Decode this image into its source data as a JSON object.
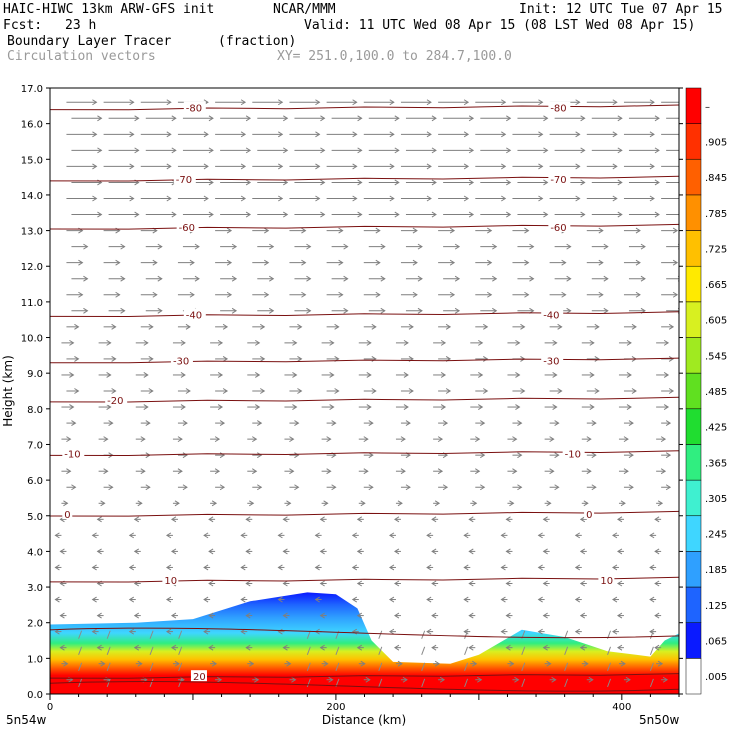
{
  "header": {
    "model": "HAIC-HIWC 13km ARW-GFS init",
    "org": "NCAR/MMM",
    "init": "Init: 12 UTC Tue 07 Apr 15",
    "fcst_label": "Fcst:",
    "fcst_value": "23 h",
    "valid": "Valid: 11 UTC Wed 08 Apr 15 (08 LST Wed 08 Apr 15)",
    "field": "Boundary Layer Tracer",
    "units": "(fraction)",
    "overlay": "Circulation vectors",
    "xy": "XY= 251.0,100.0 to 284.7,100.0"
  },
  "axes": {
    "xlabel": "Distance (km)",
    "ylabel": "Height (km)",
    "left_corner": "5n54w",
    "right_corner": "5n50w"
  },
  "colorbar": {
    "labels": [
      ".005",
      ".065",
      ".125",
      ".185",
      ".245",
      ".305",
      ".365",
      ".425",
      ".485",
      ".545",
      ".605",
      ".665",
      ".725",
      ".785",
      ".845",
      ".905",
      "–"
    ],
    "colors": [
      "#ffffff",
      "#0a1aff",
      "#1e64ff",
      "#2fa0ff",
      "#3fd6ff",
      "#3ff0d0",
      "#30ee80",
      "#20dd30",
      "#60e020",
      "#a0ea20",
      "#d8f020",
      "#ffea00",
      "#ffc000",
      "#ff9000",
      "#ff6000",
      "#ff3000",
      "#ff0000"
    ]
  },
  "chart_data": {
    "type": "heatmap",
    "title": "Boundary Layer Tracer",
    "xlabel": "Distance (km)",
    "ylabel": "Height (km)",
    "xlim": [
      0,
      440
    ],
    "ylim": [
      0,
      17
    ],
    "x_ticks": [
      0,
      200,
      400
    ],
    "y_ticks": [
      0.0,
      1.0,
      2.0,
      3.0,
      4.0,
      5.0,
      6.0,
      7.0,
      8.0,
      9.0,
      10.0,
      11.0,
      12.0,
      13.0,
      14.0,
      15.0,
      16.0,
      17.0
    ],
    "y_tick_labels": [
      "0.0",
      "1.0",
      "2.0",
      "3.0",
      "4.0",
      "5.0",
      "6.0",
      "7.0",
      "8.0",
      "9.0",
      "10.0",
      "11.0",
      "12.0",
      "13.0",
      "14.0",
      "15.0",
      "16.0",
      "17.0"
    ],
    "tracer_top_km": [
      [
        0,
        1.95
      ],
      [
        60,
        2.0
      ],
      [
        100,
        2.1
      ],
      [
        140,
        2.6
      ],
      [
        180,
        2.85
      ],
      [
        200,
        2.8
      ],
      [
        215,
        2.4
      ],
      [
        225,
        1.5
      ],
      [
        240,
        0.9
      ],
      [
        280,
        0.85
      ],
      [
        300,
        1.1
      ],
      [
        330,
        1.8
      ],
      [
        360,
        1.6
      ],
      [
        390,
        1.2
      ],
      [
        420,
        1.05
      ],
      [
        430,
        1.5
      ],
      [
        440,
        1.7
      ]
    ],
    "temperature_contours": [
      {
        "label": "-80",
        "y": 16.45,
        "label_x": [
          95,
          350
        ]
      },
      {
        "label": "-70",
        "y": 14.45,
        "label_x": [
          88,
          350
        ]
      },
      {
        "label": "-60",
        "y": 13.1,
        "label_x": [
          90,
          350
        ]
      },
      {
        "label": "-40",
        "y": 10.65,
        "label_x": [
          95,
          345
        ]
      },
      {
        "label": "-30",
        "y": 9.35,
        "label_x": [
          86,
          345
        ]
      },
      {
        "label": "-20",
        "y": 8.25,
        "label_x": [
          40,
          0
        ]
      },
      {
        "label": "-10",
        "y": 6.75,
        "label_x": [
          10,
          360
        ]
      },
      {
        "label": "0",
        "y": 5.05,
        "label_x": [
          10,
          375
        ]
      },
      {
        "label": "10",
        "y": 3.2,
        "label_x": [
          80,
          385
        ]
      },
      {
        "label": "20",
        "y": 0.5,
        "label_x": [
          100,
          0
        ]
      }
    ]
  }
}
